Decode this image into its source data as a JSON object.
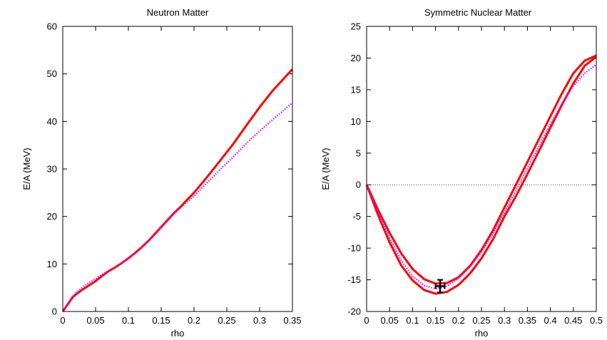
{
  "chart_data": [
    {
      "type": "line",
      "title": "Neutron Matter",
      "xlabel": "rho",
      "ylabel": "E/A (MeV)",
      "xlim": [
        0,
        0.35
      ],
      "ylim": [
        0,
        60
      ],
      "xticks": [
        0,
        0.05,
        0.1,
        0.15,
        0.2,
        0.25,
        0.3,
        0.35
      ],
      "xtick_labels": [
        "0",
        "0.05",
        "0.1",
        "0.15",
        "0.2",
        "0.25",
        "0.3",
        "0.35"
      ],
      "yticks": [
        0,
        10,
        20,
        30,
        40,
        50,
        60
      ],
      "ytick_labels": [
        "0",
        "10",
        "20",
        "30",
        "40",
        "50",
        "60"
      ],
      "grid": false,
      "series": [
        {
          "style": "solid",
          "color": "#ff0000",
          "x": [
            0,
            0.005,
            0.01,
            0.015,
            0.02,
            0.03,
            0.04,
            0.05,
            0.06,
            0.07,
            0.08,
            0.09,
            0.1,
            0.11,
            0.12,
            0.13,
            0.14,
            0.15,
            0.16,
            0.17,
            0.18,
            0.19,
            0.2,
            0.22,
            0.24,
            0.26,
            0.28,
            0.3,
            0.32,
            0.35
          ],
          "y": [
            0,
            1.0,
            2.0,
            3.0,
            3.6,
            4.6,
            5.5,
            6.4,
            7.5,
            8.5,
            9.3,
            10.2,
            11.2,
            12.3,
            13.5,
            14.8,
            16.3,
            17.8,
            19.3,
            20.8,
            22.1,
            23.6,
            25.0,
            28.3,
            31.8,
            35.3,
            39.2,
            43.0,
            46.5,
            51.0
          ]
        },
        {
          "style": "dotted",
          "color": "#dd00ff",
          "x": [
            0,
            0.005,
            0.01,
            0.015,
            0.02,
            0.03,
            0.04,
            0.05,
            0.06,
            0.07,
            0.08,
            0.09,
            0.1,
            0.11,
            0.12,
            0.13,
            0.14,
            0.15,
            0.16,
            0.17,
            0.18,
            0.19,
            0.2,
            0.22,
            0.24,
            0.26,
            0.28,
            0.3,
            0.32,
            0.35
          ],
          "y": [
            0,
            1.1,
            2.2,
            3.2,
            3.9,
            5.1,
            6.1,
            6.9,
            7.8,
            8.6,
            9.4,
            10.2,
            11.1,
            12.2,
            13.4,
            14.7,
            16.1,
            17.6,
            19.1,
            20.6,
            21.9,
            23.1,
            24.3,
            27.1,
            29.9,
            32.6,
            35.4,
            38.0,
            40.4,
            43.9
          ]
        }
      ]
    },
    {
      "type": "line",
      "title": "Symmetric Nuclear Matter",
      "xlabel": "rho",
      "ylabel": "E/A (MeV)",
      "xlim": [
        0,
        0.5
      ],
      "ylim": [
        -20,
        25
      ],
      "xticks": [
        0,
        0.05,
        0.1,
        0.15,
        0.2,
        0.25,
        0.3,
        0.35,
        0.4,
        0.45,
        0.5
      ],
      "xtick_labels": [
        "0",
        "0.05",
        "0.1",
        "0.15",
        "0.2",
        "0.25",
        "0.3",
        "0.35",
        "0.4",
        "0.45",
        "0.5"
      ],
      "yticks": [
        -20,
        -15,
        -10,
        -5,
        0,
        5,
        10,
        15,
        20,
        25
      ],
      "ytick_labels": [
        "-20",
        "-15",
        "-10",
        "-5",
        "0",
        "5",
        "10",
        "15",
        "20",
        "25"
      ],
      "grid": false,
      "zero_line": true,
      "series": [
        {
          "style": "solid",
          "color": "#ff0000",
          "x": [
            0,
            0.025,
            0.05,
            0.075,
            0.1,
            0.125,
            0.15,
            0.175,
            0.2,
            0.225,
            0.25,
            0.275,
            0.3,
            0.325,
            0.35,
            0.375,
            0.4,
            0.425,
            0.45,
            0.475,
            0.5
          ],
          "y": [
            0,
            -4.8,
            -9.1,
            -12.7,
            -15.1,
            -16.6,
            -17.2,
            -16.9,
            -15.8,
            -14.0,
            -11.6,
            -8.6,
            -5.0,
            -1.8,
            1.7,
            5.3,
            9.0,
            12.6,
            16.0,
            18.8,
            20.2
          ]
        },
        {
          "style": "solid",
          "color": "#ff0000",
          "x": [
            0,
            0.025,
            0.05,
            0.075,
            0.1,
            0.125,
            0.15,
            0.175,
            0.2,
            0.225,
            0.25,
            0.275,
            0.3,
            0.325,
            0.35,
            0.375,
            0.4,
            0.425,
            0.45,
            0.475,
            0.5
          ],
          "y": [
            0,
            -4.0,
            -7.6,
            -10.8,
            -13.3,
            -14.9,
            -15.6,
            -15.5,
            -14.6,
            -12.8,
            -10.3,
            -7.2,
            -3.6,
            0.0,
            3.6,
            7.2,
            10.8,
            14.4,
            17.6,
            19.6,
            20.4
          ]
        },
        {
          "style": "dotted",
          "color": "#dd00ff",
          "x": [
            0,
            0.025,
            0.05,
            0.075,
            0.1,
            0.125,
            0.15,
            0.175,
            0.2,
            0.225,
            0.25,
            0.275,
            0.3,
            0.325,
            0.35,
            0.375,
            0.4,
            0.425,
            0.45,
            0.475,
            0.5
          ],
          "y": [
            0,
            -4.4,
            -8.4,
            -11.9,
            -14.4,
            -15.9,
            -16.4,
            -16.0,
            -14.8,
            -13.0,
            -10.6,
            -7.7,
            -4.4,
            -0.9,
            2.6,
            6.1,
            9.6,
            12.8,
            15.6,
            17.6,
            19.0
          ]
        }
      ],
      "error_point": {
        "x": 0.16,
        "y": -16,
        "x_err": 0.01,
        "y_err": 1,
        "color": "#000000"
      }
    }
  ]
}
